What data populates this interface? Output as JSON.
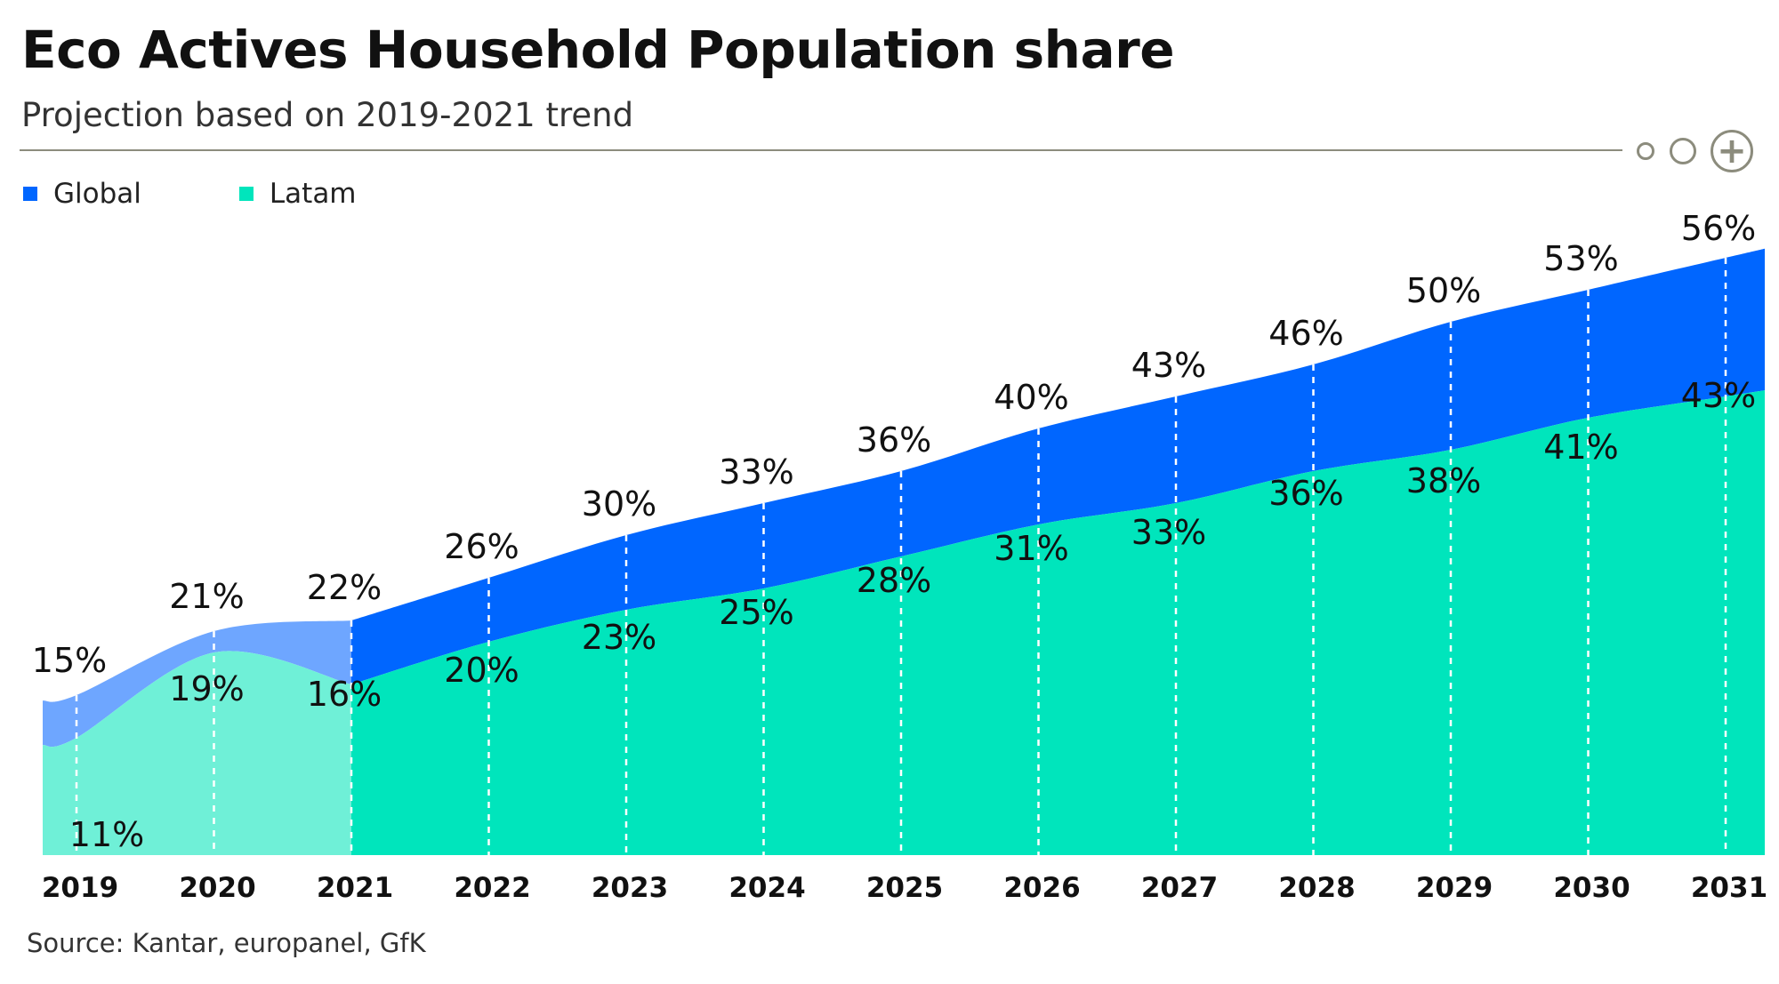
{
  "header": {
    "title": "Eco Actives Household Population share",
    "subtitle": "Projection based on 2019-2021 trend",
    "plus_glyph": "+"
  },
  "legend": [
    {
      "label": "Global",
      "color": "#0066ff"
    },
    {
      "label": "Latam",
      "color": "#00e5bc"
    }
  ],
  "source": "Source: Kantar, europanel, GfK",
  "colors": {
    "global": "#0066ff",
    "global_historic": "#6ea6ff",
    "latam": "#00e5bc",
    "latam_historic": "#6ff0d7",
    "rule": "#8c8c7d"
  },
  "chart_data": {
    "type": "area",
    "title": "Eco Actives Household Population share",
    "subtitle": "Projection based on 2019-2021 trend",
    "x": [
      "2019",
      "2020",
      "2021",
      "2022",
      "2023",
      "2024",
      "2025",
      "2026",
      "2027",
      "2028",
      "2029",
      "2030",
      "2031"
    ],
    "historic_until": "2021",
    "series": [
      {
        "name": "Global",
        "values": [
          15,
          21,
          22,
          26,
          30,
          33,
          36,
          40,
          43,
          46,
          50,
          53,
          56
        ],
        "labels": [
          "15%",
          "21%",
          "22%",
          "26%",
          "30%",
          "33%",
          "36%",
          "40%",
          "43%",
          "46%",
          "50%",
          "53%",
          "56%"
        ]
      },
      {
        "name": "Latam",
        "values": [
          11,
          19,
          16,
          20,
          23,
          25,
          28,
          31,
          33,
          36,
          38,
          41,
          43
        ],
        "labels": [
          "11%",
          "19%",
          "16%",
          "20%",
          "23%",
          "25%",
          "28%",
          "31%",
          "33%",
          "36%",
          "38%",
          "41%",
          "43%"
        ]
      }
    ],
    "ylim": [
      0,
      60
    ],
    "grid": false,
    "legend_position": "top-left"
  }
}
